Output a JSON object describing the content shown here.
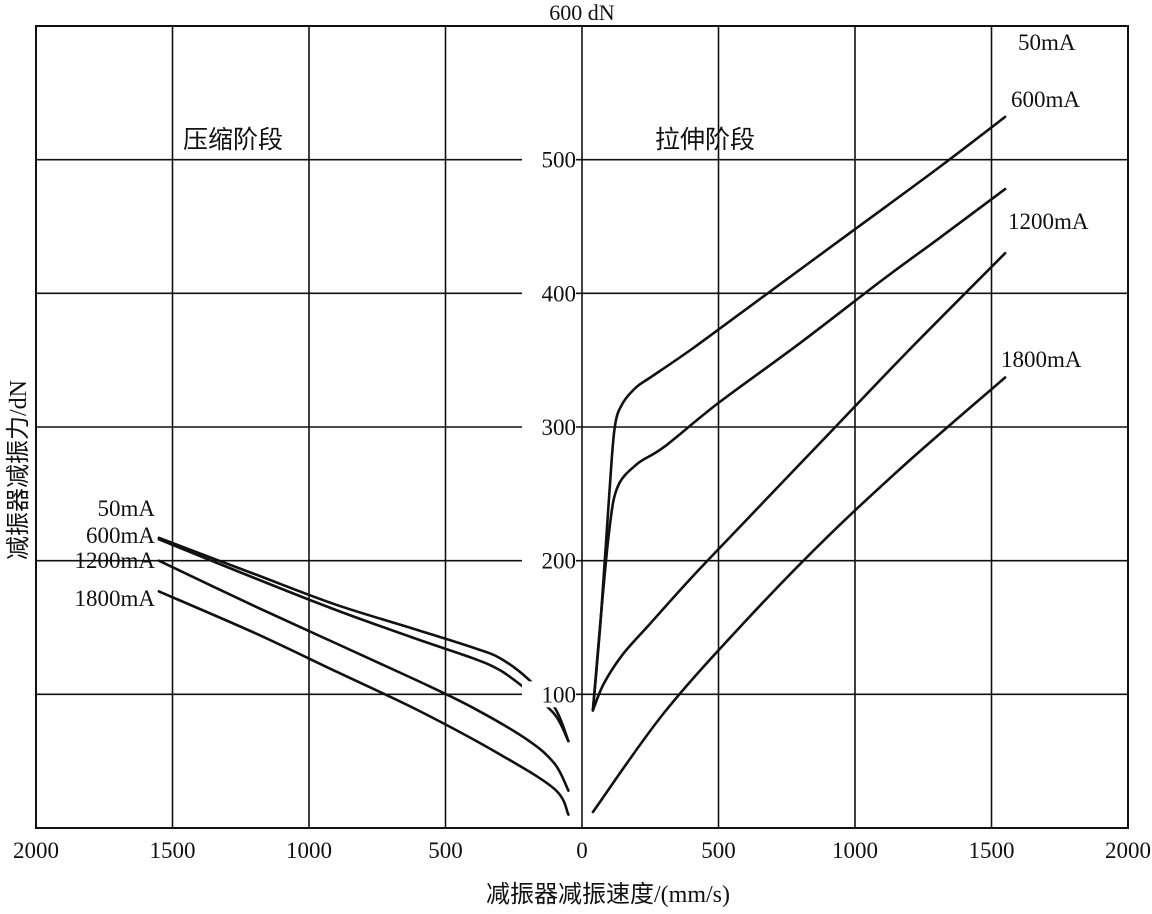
{
  "chart_data": {
    "type": "line",
    "top_label": "600 dN",
    "xlabel": "减振器减振速度/(mm/s)",
    "ylabel": "减振器减振力/dN",
    "xlim": [
      -2000,
      2000
    ],
    "ylim": [
      0,
      600
    ],
    "x_tick_labels": [
      "2000",
      "1500",
      "1000",
      "500",
      "0",
      "500",
      "1000",
      "1500",
      "2000"
    ],
    "y_tick_values": [
      100,
      200,
      300,
      400,
      500
    ],
    "y_tick_labels": [
      "100",
      "200",
      "300",
      "400",
      "500"
    ],
    "grid": true,
    "regions": [
      {
        "label": "压缩阶段"
      },
      {
        "label": "拉伸阶段"
      }
    ],
    "series": [
      {
        "name": "50mA",
        "compression": [
          [
            -1550,
            217
          ],
          [
            -1200,
            190
          ],
          [
            -900,
            167
          ],
          [
            -600,
            148
          ],
          [
            -400,
            135
          ],
          [
            -300,
            127
          ],
          [
            -200,
            112
          ],
          [
            -100,
            90
          ],
          [
            -50,
            65
          ]
        ],
        "extension": [
          [
            40,
            88
          ],
          [
            70,
            160
          ],
          [
            100,
            250
          ],
          [
            120,
            300
          ],
          [
            150,
            318
          ],
          [
            200,
            330
          ],
          [
            250,
            337
          ],
          [
            400,
            358
          ],
          [
            600,
            388
          ],
          [
            1000,
            448
          ],
          [
            1300,
            493
          ],
          [
            1550,
            532
          ]
        ]
      },
      {
        "name": "600mA",
        "compression": [
          [
            -1550,
            216
          ],
          [
            -1200,
            187
          ],
          [
            -900,
            163
          ],
          [
            -600,
            141
          ],
          [
            -400,
            127
          ],
          [
            -300,
            118
          ],
          [
            -200,
            103
          ],
          [
            -100,
            85
          ],
          [
            -50,
            65
          ]
        ],
        "extension": [
          [
            40,
            88
          ],
          [
            70,
            160
          ],
          [
            100,
            223
          ],
          [
            130,
            255
          ],
          [
            200,
            272
          ],
          [
            300,
            285
          ],
          [
            500,
            318
          ],
          [
            800,
            363
          ],
          [
            1100,
            410
          ],
          [
            1300,
            440
          ],
          [
            1550,
            478
          ]
        ]
      },
      {
        "name": "1200mA",
        "compression": [
          [
            -1550,
            200
          ],
          [
            -1200,
            166
          ],
          [
            -900,
            138
          ],
          [
            -600,
            110
          ],
          [
            -400,
            90
          ],
          [
            -200,
            66
          ],
          [
            -100,
            48
          ],
          [
            -50,
            28
          ]
        ],
        "extension": [
          [
            40,
            88
          ],
          [
            80,
            108
          ],
          [
            150,
            130
          ],
          [
            250,
            153
          ],
          [
            400,
            187
          ],
          [
            600,
            230
          ],
          [
            900,
            294
          ],
          [
            1200,
            358
          ],
          [
            1550,
            430
          ]
        ]
      },
      {
        "name": "1800mA",
        "compression": [
          [
            -1550,
            177
          ],
          [
            -1200,
            146
          ],
          [
            -900,
            117
          ],
          [
            -600,
            88
          ],
          [
            -300,
            55
          ],
          [
            -100,
            29
          ],
          [
            -50,
            10
          ]
        ],
        "extension": [
          [
            40,
            12
          ],
          [
            300,
            86
          ],
          [
            600,
            155
          ],
          [
            900,
            218
          ],
          [
            1200,
            275
          ],
          [
            1550,
            337
          ]
        ]
      }
    ]
  }
}
